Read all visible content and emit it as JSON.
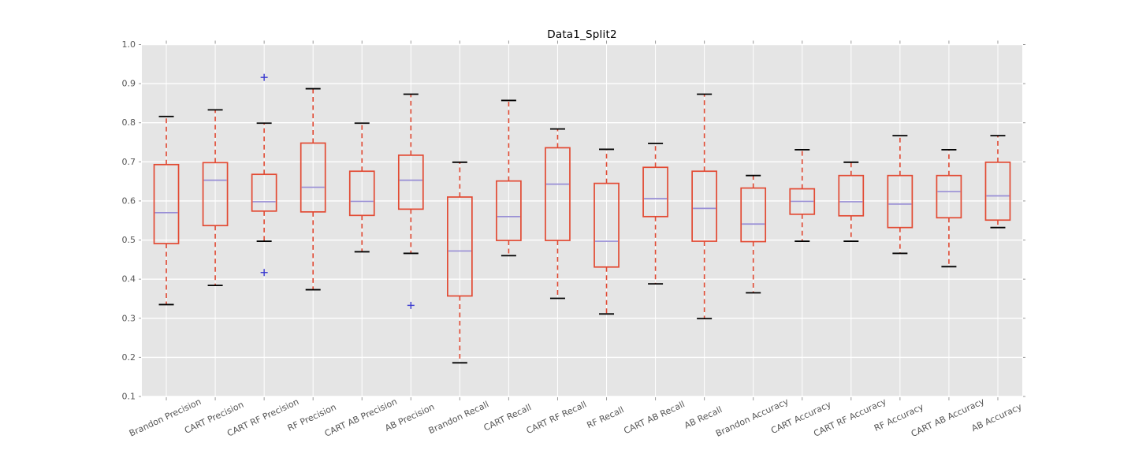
{
  "chart_data": {
    "type": "boxplot",
    "title": "Data1_Split2",
    "xlabel": "",
    "ylabel": "",
    "ylim": [
      0.1,
      1.0
    ],
    "yticks": [
      1.0,
      0.9,
      0.8,
      0.7,
      0.6,
      0.5,
      0.4,
      0.3,
      0.2,
      0.1
    ],
    "ytick_labels": [
      "1.0",
      "0.9",
      "0.8",
      "0.7",
      "0.6",
      "0.5",
      "0.4",
      "0.3",
      "0.2",
      "0.1"
    ],
    "grid": true,
    "legend": false,
    "categories": [
      "Brandon Precision",
      "CART Precision",
      "CART RF Precision",
      "RF Precision",
      "CART AB Precision",
      "AB Precision",
      "Brandon Recall",
      "CART Recall",
      "CART RF Recall",
      "RF Recall",
      "CART AB Recall",
      "AB Recall",
      "Brandon Accuracy",
      "CART Accuracy",
      "CART RF Accuracy",
      "RF Accuracy",
      "CART AB Accuracy",
      "AB Accuracy"
    ],
    "boxes": [
      {
        "label": "Brandon Precision",
        "whisker_low": 0.335,
        "q1": 0.491,
        "median": 0.57,
        "q3": 0.693,
        "whisker_high": 0.816,
        "outliers": []
      },
      {
        "label": "CART Precision",
        "whisker_low": 0.384,
        "q1": 0.537,
        "median": 0.653,
        "q3": 0.698,
        "whisker_high": 0.833,
        "outliers": []
      },
      {
        "label": "CART RF Precision",
        "whisker_low": 0.497,
        "q1": 0.574,
        "median": 0.598,
        "q3": 0.668,
        "whisker_high": 0.799,
        "outliers": [
          0.916,
          0.417
        ]
      },
      {
        "label": "RF Precision",
        "whisker_low": 0.373,
        "q1": 0.572,
        "median": 0.635,
        "q3": 0.748,
        "whisker_high": 0.887,
        "outliers": []
      },
      {
        "label": "CART AB Precision",
        "whisker_low": 0.47,
        "q1": 0.563,
        "median": 0.599,
        "q3": 0.676,
        "whisker_high": 0.799,
        "outliers": []
      },
      {
        "label": "AB Precision",
        "whisker_low": 0.466,
        "q1": 0.579,
        "median": 0.653,
        "q3": 0.717,
        "whisker_high": 0.873,
        "outliers": [
          0.333
        ]
      },
      {
        "label": "Brandon Recall",
        "whisker_low": 0.186,
        "q1": 0.357,
        "median": 0.472,
        "q3": 0.61,
        "whisker_high": 0.699,
        "outliers": []
      },
      {
        "label": "CART Recall",
        "whisker_low": 0.46,
        "q1": 0.499,
        "median": 0.56,
        "q3": 0.651,
        "whisker_high": 0.857,
        "outliers": []
      },
      {
        "label": "CART RF Recall",
        "whisker_low": 0.351,
        "q1": 0.499,
        "median": 0.643,
        "q3": 0.736,
        "whisker_high": 0.784,
        "outliers": []
      },
      {
        "label": "RF Recall",
        "whisker_low": 0.311,
        "q1": 0.431,
        "median": 0.497,
        "q3": 0.645,
        "whisker_high": 0.732,
        "outliers": []
      },
      {
        "label": "CART AB Recall",
        "whisker_low": 0.388,
        "q1": 0.56,
        "median": 0.606,
        "q3": 0.686,
        "whisker_high": 0.747,
        "outliers": []
      },
      {
        "label": "AB Recall",
        "whisker_low": 0.299,
        "q1": 0.497,
        "median": 0.581,
        "q3": 0.676,
        "whisker_high": 0.873,
        "outliers": []
      },
      {
        "label": "Brandon Accuracy",
        "whisker_low": 0.365,
        "q1": 0.496,
        "median": 0.541,
        "q3": 0.633,
        "whisker_high": 0.665,
        "outliers": []
      },
      {
        "label": "CART Accuracy",
        "whisker_low": 0.497,
        "q1": 0.566,
        "median": 0.599,
        "q3": 0.631,
        "whisker_high": 0.731,
        "outliers": []
      },
      {
        "label": "CART RF Accuracy",
        "whisker_low": 0.497,
        "q1": 0.562,
        "median": 0.598,
        "q3": 0.665,
        "whisker_high": 0.699,
        "outliers": []
      },
      {
        "label": "RF Accuracy",
        "whisker_low": 0.466,
        "q1": 0.532,
        "median": 0.592,
        "q3": 0.665,
        "whisker_high": 0.767,
        "outliers": []
      },
      {
        "label": "CART AB Accuracy",
        "whisker_low": 0.432,
        "q1": 0.557,
        "median": 0.624,
        "q3": 0.665,
        "whisker_high": 0.731,
        "outliers": []
      },
      {
        "label": "AB Accuracy",
        "whisker_low": 0.532,
        "q1": 0.551,
        "median": 0.613,
        "q3": 0.699,
        "whisker_high": 0.767,
        "outliers": []
      }
    ],
    "colors": {
      "plot_background": "#E5E5E5",
      "figure_background": "#FFFFFF",
      "gridline": "#FFFFFF",
      "box_edge": "#E24A33",
      "whisker": "#E24A33",
      "cap": "#000000",
      "median": "#988ED5",
      "outlier_marker": "#3A3AD0",
      "tick_label": "#555555",
      "tick_mark": "#999999",
      "title": "#000000"
    }
  }
}
